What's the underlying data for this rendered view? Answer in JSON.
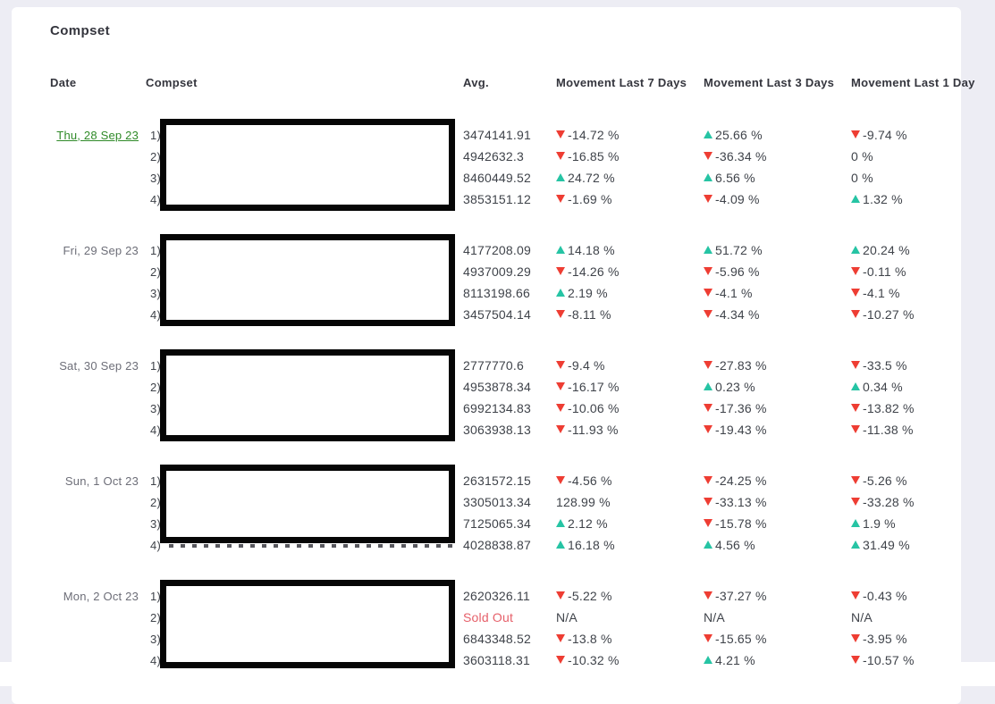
{
  "card": {
    "title": "Compset"
  },
  "table": {
    "headers": {
      "date": "Date",
      "compset": "Compset",
      "avg": "Avg.",
      "m7": "Movement Last 7 Days",
      "m3": "Movement Last 3 Days",
      "m1": "Movement Last 1 Day"
    },
    "groups": [
      {
        "date": "Thu, 28 Sep 23",
        "date_is_link": true,
        "rows": [
          {
            "num": "1)",
            "avg": "3474141.91",
            "m7": {
              "dir": "down",
              "text": "-14.72 %"
            },
            "m3": {
              "dir": "up",
              "text": "25.66 %"
            },
            "m1": {
              "dir": "down",
              "text": "-9.74 %"
            }
          },
          {
            "num": "2)",
            "avg": "4942632.3",
            "m7": {
              "dir": "down",
              "text": "-16.85 %"
            },
            "m3": {
              "dir": "down",
              "text": "-36.34 %"
            },
            "m1": {
              "dir": "none",
              "text": "0 %"
            }
          },
          {
            "num": "3)",
            "avg": "8460449.52",
            "m7": {
              "dir": "up",
              "text": "24.72 %"
            },
            "m3": {
              "dir": "up",
              "text": "6.56 %"
            },
            "m1": {
              "dir": "none",
              "text": "0 %"
            }
          },
          {
            "num": "4)",
            "avg": "3853151.12",
            "m7": {
              "dir": "down",
              "text": "-1.69 %"
            },
            "m3": {
              "dir": "down",
              "text": "-4.09 %"
            },
            "m1": {
              "dir": "up",
              "text": "1.32 %"
            }
          }
        ]
      },
      {
        "date": "Fri, 29 Sep 23",
        "date_is_link": false,
        "rows": [
          {
            "num": "1)",
            "avg": "4177208.09",
            "m7": {
              "dir": "up",
              "text": "14.18 %"
            },
            "m3": {
              "dir": "up",
              "text": "51.72 %"
            },
            "m1": {
              "dir": "up",
              "text": "20.24 %"
            }
          },
          {
            "num": "2)",
            "avg": "4937009.29",
            "m7": {
              "dir": "down",
              "text": "-14.26 %"
            },
            "m3": {
              "dir": "down",
              "text": "-5.96 %"
            },
            "m1": {
              "dir": "down",
              "text": "-0.11 %"
            }
          },
          {
            "num": "3)",
            "avg": "8113198.66",
            "m7": {
              "dir": "up",
              "text": "2.19 %"
            },
            "m3": {
              "dir": "down",
              "text": "-4.1 %"
            },
            "m1": {
              "dir": "down",
              "text": "-4.1 %"
            }
          },
          {
            "num": "4)",
            "avg": "3457504.14",
            "m7": {
              "dir": "down",
              "text": "-8.11 %"
            },
            "m3": {
              "dir": "down",
              "text": "-4.34 %"
            },
            "m1": {
              "dir": "down",
              "text": "-10.27 %"
            }
          }
        ]
      },
      {
        "date": "Sat, 30 Sep 23",
        "date_is_link": false,
        "rows": [
          {
            "num": "1)",
            "avg": "2777770.6",
            "m7": {
              "dir": "down",
              "text": "-9.4 %"
            },
            "m3": {
              "dir": "down",
              "text": "-27.83 %"
            },
            "m1": {
              "dir": "down",
              "text": "-33.5 %"
            }
          },
          {
            "num": "2)",
            "avg": "4953878.34",
            "m7": {
              "dir": "down",
              "text": "-16.17 %"
            },
            "m3": {
              "dir": "up",
              "text": "0.23 %"
            },
            "m1": {
              "dir": "up",
              "text": "0.34 %"
            }
          },
          {
            "num": "3)",
            "avg": "6992134.83",
            "m7": {
              "dir": "down",
              "text": "-10.06 %"
            },
            "m3": {
              "dir": "down",
              "text": "-17.36 %"
            },
            "m1": {
              "dir": "down",
              "text": "-13.82 %"
            }
          },
          {
            "num": "4)",
            "avg": "3063938.13",
            "m7": {
              "dir": "down",
              "text": "-11.93 %"
            },
            "m3": {
              "dir": "down",
              "text": "-19.43 %"
            },
            "m1": {
              "dir": "down",
              "text": "-11.38 %"
            }
          }
        ]
      },
      {
        "date": "Sun, 1 Oct 23",
        "date_is_link": false,
        "rows": [
          {
            "num": "1)",
            "avg": "2631572.15",
            "m7": {
              "dir": "down",
              "text": "-4.56 %"
            },
            "m3": {
              "dir": "down",
              "text": "-24.25 %"
            },
            "m1": {
              "dir": "down",
              "text": "-5.26 %"
            }
          },
          {
            "num": "2)",
            "avg": "3305013.34",
            "m7": {
              "dir": "none",
              "text": "128.99 %"
            },
            "m3": {
              "dir": "down",
              "text": "-33.13 %"
            },
            "m1": {
              "dir": "down",
              "text": "-33.28 %"
            }
          },
          {
            "num": "3)",
            "avg": "7125065.34",
            "m7": {
              "dir": "up",
              "text": "2.12 %"
            },
            "m3": {
              "dir": "down",
              "text": "-15.78 %"
            },
            "m1": {
              "dir": "up",
              "text": "1.9 %"
            }
          },
          {
            "num": "4)",
            "avg": "4028838.87",
            "m7": {
              "dir": "up",
              "text": "16.18 %"
            },
            "m3": {
              "dir": "up",
              "text": "4.56 %"
            },
            "m1": {
              "dir": "up",
              "text": "31.49 %"
            }
          }
        ]
      },
      {
        "date": "Mon, 2 Oct 23",
        "date_is_link": false,
        "rows": [
          {
            "num": "1)",
            "avg": "2620326.11",
            "m7": {
              "dir": "down",
              "text": "-5.22 %"
            },
            "m3": {
              "dir": "down",
              "text": "-37.27 %"
            },
            "m1": {
              "dir": "down",
              "text": "-0.43 %"
            }
          },
          {
            "num": "2)",
            "avg": "Sold Out",
            "sold": true,
            "m7": {
              "dir": "none",
              "text": "N/A"
            },
            "m3": {
              "dir": "none",
              "text": "N/A"
            },
            "m1": {
              "dir": "none",
              "text": "N/A"
            }
          },
          {
            "num": "3)",
            "avg": "6843348.52",
            "m7": {
              "dir": "down",
              "text": "-13.8 %"
            },
            "m3": {
              "dir": "down",
              "text": "-15.65 %"
            },
            "m1": {
              "dir": "down",
              "text": "-3.95 %"
            }
          },
          {
            "num": "4)",
            "avg": "3603118.31",
            "m7": {
              "dir": "down",
              "text": "-10.32 %"
            },
            "m3": {
              "dir": "up",
              "text": "4.21 %"
            },
            "m1": {
              "dir": "down",
              "text": "-10.57 %"
            }
          }
        ]
      }
    ]
  },
  "colors": {
    "up": "#26c4a4",
    "down": "#ee3d33",
    "link": "#2f8a28",
    "sold": "#e6606a"
  }
}
